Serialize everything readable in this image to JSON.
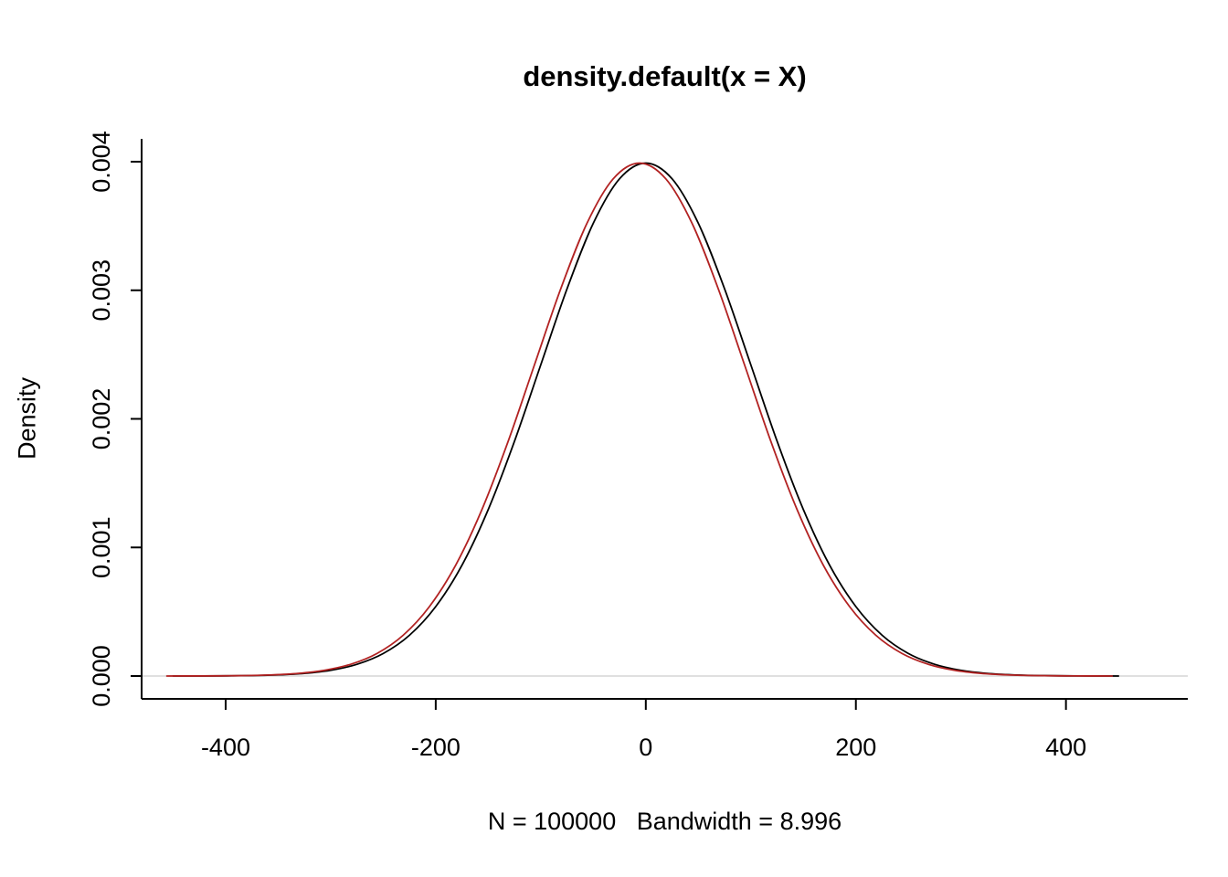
{
  "page": {
    "background": "#ffffff"
  },
  "chart_data": {
    "type": "line",
    "title": "density.default(x = X)",
    "ylabel": "Density",
    "xlabel": "N = 100000   Bandwidth = 8.996",
    "xlim": [
      -480,
      516
    ],
    "ylim": [
      0,
      0.004177
    ],
    "grid": false,
    "legend": "none",
    "x_ticks": [
      {
        "value": -400,
        "label": "-400"
      },
      {
        "value": -200,
        "label": "-200"
      },
      {
        "value": 0,
        "label": "0"
      },
      {
        "value": 200,
        "label": "200"
      },
      {
        "value": 400,
        "label": "400"
      }
    ],
    "y_ticks": [
      {
        "value": 0.0,
        "label": "0.000"
      },
      {
        "value": 0.001,
        "label": "0.001"
      },
      {
        "value": 0.002,
        "label": "0.002"
      },
      {
        "value": 0.003,
        "label": "0.003"
      },
      {
        "value": 0.004,
        "label": "0.004"
      }
    ],
    "axis_color": "#000000",
    "zero_line_color": "#d6d6d6",
    "series": [
      {
        "name": "density-black",
        "color": "#000000",
        "x": [
          -450,
          -425,
          -400,
          -375,
          -350,
          -325,
          -300,
          -275,
          -250,
          -225,
          -200,
          -175,
          -150,
          -125,
          -100,
          -75,
          -50,
          -25,
          0,
          25,
          50,
          75,
          100,
          125,
          150,
          175,
          200,
          225,
          250,
          275,
          300,
          325,
          350,
          375,
          400,
          425,
          450
        ],
        "y": [
          2e-07,
          5e-07,
          1.3e-06,
          3.5e-06,
          8.7e-06,
          2.03e-05,
          4.43e-05,
          9.1e-05,
          0.000175,
          0.000317,
          0.00054,
          0.000862,
          0.001295,
          0.001826,
          0.00242,
          0.003011,
          0.003521,
          0.003867,
          0.003989,
          0.003867,
          0.003521,
          0.003011,
          0.00242,
          0.001826,
          0.001295,
          0.000862,
          0.00054,
          0.000317,
          0.000175,
          9.1e-05,
          4.43e-05,
          2.03e-05,
          8.7e-06,
          3.5e-06,
          1.3e-06,
          5e-07,
          2e-07
        ]
      },
      {
        "name": "density-red",
        "color": "#b22222",
        "x": [
          -456,
          -431,
          -406,
          -381,
          -356,
          -331,
          -306,
          -281,
          -256,
          -231,
          -206,
          -181,
          -156,
          -131,
          -106,
          -81,
          -56,
          -31,
          -6,
          19,
          44,
          69,
          94,
          119,
          144,
          169,
          194,
          219,
          244,
          269,
          294,
          319,
          344,
          369,
          394,
          419,
          444
        ],
        "y": [
          2e-07,
          5e-07,
          1.3e-06,
          3.5e-06,
          8.7e-06,
          2.03e-05,
          4.43e-05,
          9.1e-05,
          0.000175,
          0.000317,
          0.00054,
          0.000862,
          0.001295,
          0.001826,
          0.00242,
          0.003011,
          0.003521,
          0.003867,
          0.003989,
          0.003867,
          0.003521,
          0.003011,
          0.00242,
          0.001826,
          0.001295,
          0.000862,
          0.00054,
          0.000317,
          0.000175,
          9.1e-05,
          4.43e-05,
          2.03e-05,
          8.7e-06,
          3.5e-06,
          1.3e-06,
          5e-07,
          2e-07
        ]
      }
    ]
  }
}
